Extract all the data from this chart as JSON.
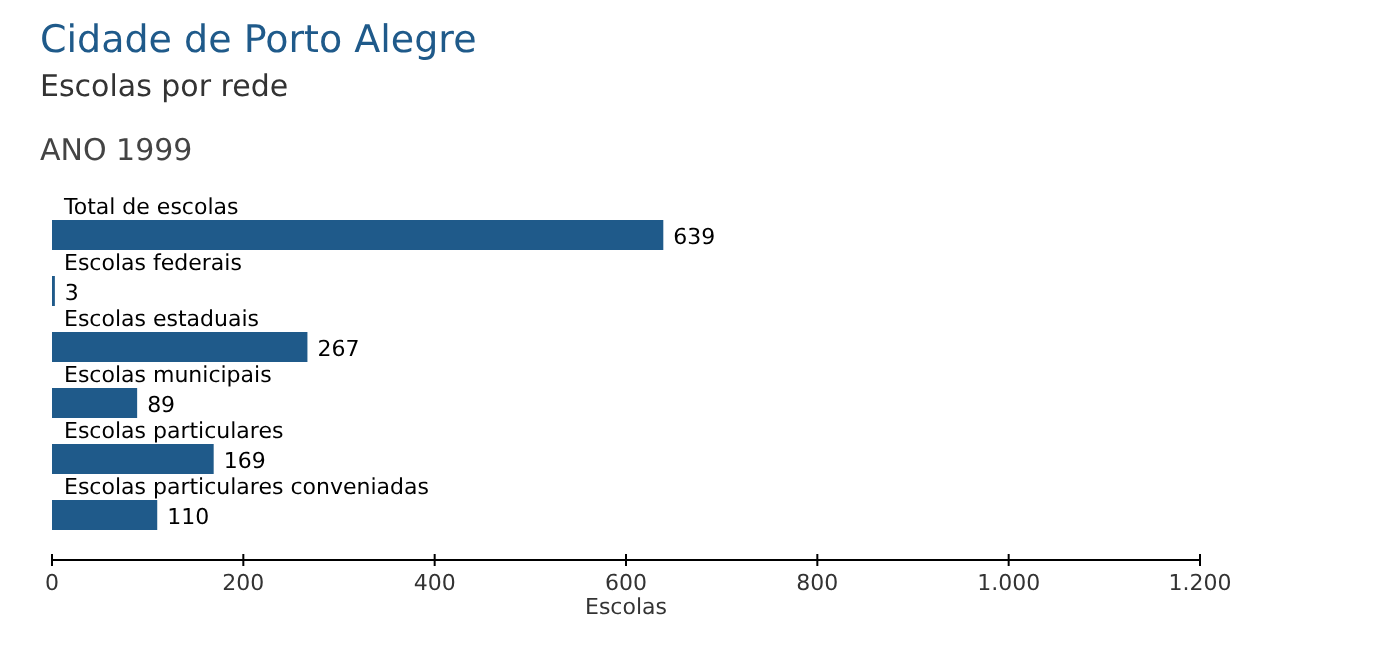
{
  "chart_data": {
    "type": "bar",
    "orientation": "horizontal",
    "title": "Cidade de Porto Alegre",
    "subtitle": "Escolas por rede",
    "annotations": [
      "ANO 1999"
    ],
    "categories": [
      "Total de escolas",
      "Escolas federais",
      "Escolas estaduais",
      "Escolas municipais",
      "Escolas particulares",
      "Escolas particulares conveniadas"
    ],
    "values": [
      639,
      3,
      267,
      89,
      169,
      110
    ],
    "color": "#1f5a8a",
    "data_labels": true,
    "xlabel": "Escolas",
    "xlim": [
      0,
      1200
    ],
    "xticks": [
      0,
      200,
      400,
      600,
      800,
      {
        "value": 1000,
        "label": "1.000"
      },
      {
        "value": 1200,
        "label": "1.200"
      }
    ],
    "grid": false
  }
}
